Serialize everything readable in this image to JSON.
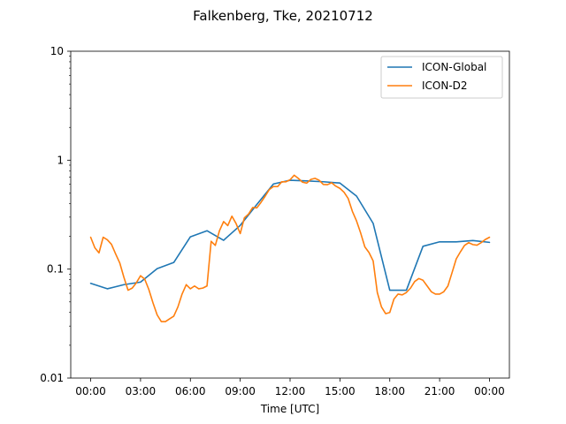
{
  "chart_data": {
    "type": "line",
    "title": "Falkenberg, Tke, 20210712",
    "xlabel": "Time [UTC]",
    "ylabel": "",
    "y_scale": "log",
    "ylim": [
      0.01,
      10
    ],
    "xlim_hours": [
      -1.2,
      25.2
    ],
    "x_ticks": [
      {
        "hour": 0,
        "label": "00:00"
      },
      {
        "hour": 3,
        "label": "03:00"
      },
      {
        "hour": 6,
        "label": "06:00"
      },
      {
        "hour": 9,
        "label": "09:00"
      },
      {
        "hour": 12,
        "label": "12:00"
      },
      {
        "hour": 15,
        "label": "15:00"
      },
      {
        "hour": 18,
        "label": "18:00"
      },
      {
        "hour": 21,
        "label": "21:00"
      },
      {
        "hour": 24,
        "label": "00:00"
      }
    ],
    "y_ticks": [
      {
        "value": 0.01,
        "label": "0.01"
      },
      {
        "value": 0.1,
        "label": "0.1"
      },
      {
        "value": 1,
        "label": "1"
      },
      {
        "value": 10,
        "label": "10"
      }
    ],
    "grid": false,
    "legend": "top-right",
    "series": [
      {
        "name": "ICON-Global",
        "color": "#1f77b4",
        "x": [
          0,
          1,
          2,
          3,
          4,
          5,
          6,
          7,
          8,
          9,
          10,
          11,
          12,
          13,
          14,
          15,
          16,
          17,
          18,
          19,
          20,
          21,
          22,
          23,
          24
        ],
        "y": [
          0.074,
          0.066,
          0.072,
          0.076,
          0.101,
          0.115,
          0.198,
          0.225,
          0.184,
          0.252,
          0.392,
          0.605,
          0.654,
          0.645,
          0.634,
          0.617,
          0.468,
          0.263,
          0.064,
          0.064,
          0.162,
          0.178,
          0.178,
          0.183,
          0.176
        ]
      },
      {
        "name": "ICON-D2",
        "color": "#ff7f0e",
        "x": [
          0,
          0.25,
          0.5,
          0.75,
          1,
          1.25,
          1.5,
          1.75,
          2,
          2.25,
          2.5,
          2.75,
          3,
          3.25,
          3.5,
          3.75,
          4,
          4.25,
          4.5,
          4.75,
          5,
          5.25,
          5.5,
          5.75,
          6,
          6.25,
          6.5,
          6.75,
          7,
          7.25,
          7.5,
          7.75,
          8,
          8.25,
          8.5,
          8.75,
          9,
          9.25,
          9.5,
          9.75,
          10,
          10.25,
          10.5,
          10.75,
          11,
          11.25,
          11.5,
          11.75,
          12,
          12.25,
          12.5,
          12.75,
          13,
          13.25,
          13.5,
          13.75,
          14,
          14.25,
          14.5,
          14.75,
          15,
          15.25,
          15.5,
          15.75,
          16,
          16.25,
          16.5,
          16.75,
          17,
          17.25,
          17.5,
          17.75,
          18,
          18.25,
          18.5,
          18.75,
          19,
          19.25,
          19.5,
          19.75,
          20,
          20.25,
          20.5,
          20.75,
          21,
          21.25,
          21.5,
          21.75,
          22,
          22.25,
          22.5,
          22.75,
          23,
          23.25,
          23.5,
          23.75,
          24
        ],
        "y": [
          0.196,
          0.157,
          0.141,
          0.196,
          0.186,
          0.169,
          0.138,
          0.114,
          0.084,
          0.064,
          0.067,
          0.075,
          0.087,
          0.081,
          0.065,
          0.049,
          0.038,
          0.033,
          0.033,
          0.035,
          0.037,
          0.045,
          0.059,
          0.072,
          0.066,
          0.07,
          0.066,
          0.067,
          0.07,
          0.18,
          0.165,
          0.225,
          0.273,
          0.251,
          0.306,
          0.262,
          0.212,
          0.296,
          0.32,
          0.368,
          0.365,
          0.41,
          0.467,
          0.538,
          0.573,
          0.572,
          0.633,
          0.633,
          0.661,
          0.728,
          0.68,
          0.628,
          0.616,
          0.666,
          0.681,
          0.654,
          0.599,
          0.596,
          0.621,
          0.578,
          0.551,
          0.507,
          0.444,
          0.339,
          0.277,
          0.214,
          0.16,
          0.142,
          0.119,
          0.061,
          0.045,
          0.039,
          0.04,
          0.053,
          0.059,
          0.058,
          0.061,
          0.067,
          0.077,
          0.082,
          0.079,
          0.07,
          0.062,
          0.059,
          0.059,
          0.062,
          0.07,
          0.093,
          0.124,
          0.144,
          0.165,
          0.175,
          0.168,
          0.166,
          0.175,
          0.187,
          0.196
        ]
      }
    ]
  }
}
